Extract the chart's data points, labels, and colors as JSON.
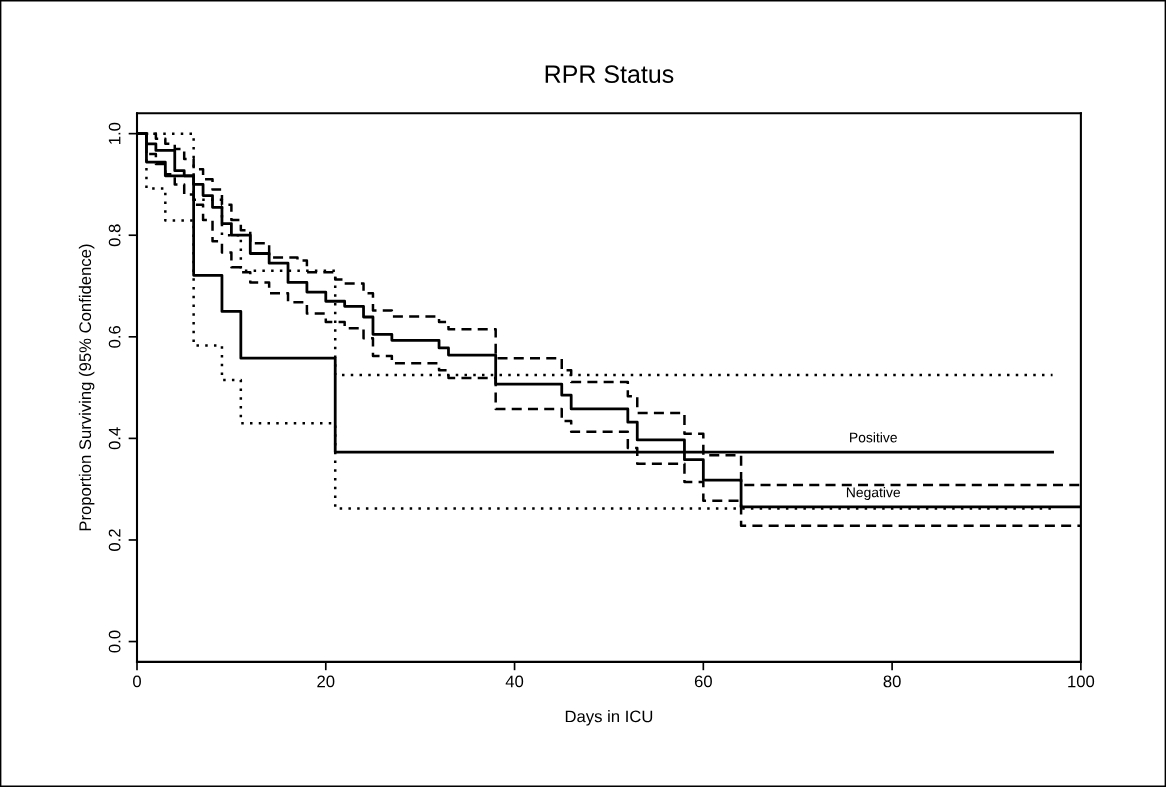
{
  "chart_data": {
    "type": "step",
    "title": "RPR Status",
    "xlabel": "Days in ICU",
    "ylabel": "Proportion Surviving (95% Confidence)",
    "xlim": [
      0,
      100
    ],
    "xticks": [
      0,
      20,
      40,
      60,
      80,
      100
    ],
    "ylim": [
      -0.04,
      1.04
    ],
    "yticks": [
      {
        "value": 0,
        "label": "0.0"
      },
      {
        "value": 0.2,
        "label": "0.2"
      },
      {
        "value": 0.4,
        "label": "0.4"
      },
      {
        "value": 0.6,
        "label": "0.6"
      },
      {
        "value": 0.8,
        "label": "0.8"
      },
      {
        "value": 1,
        "label": "1.0"
      }
    ],
    "grid": false,
    "legend": false,
    "series": [
      {
        "name": "Positive",
        "color": "#000000",
        "line_style": "solid",
        "x": [
          0,
          1,
          3,
          6,
          9,
          11,
          21,
          97
        ],
        "values": [
          1.0,
          0.944,
          0.917,
          0.721,
          0.65,
          0.558,
          0.373,
          0.373
        ]
      },
      {
        "color": "#000000",
        "line_style": "dotted",
        "x": [
          0,
          6,
          9,
          11,
          21,
          97
        ],
        "values": [
          1.0,
          0.87,
          0.8,
          0.73,
          0.525,
          0.525
        ]
      },
      {
        "color": "#000000",
        "line_style": "dotted",
        "x": [
          0,
          1,
          3,
          6,
          9,
          11,
          21,
          97
        ],
        "values": [
          1.0,
          0.892,
          0.829,
          0.583,
          0.515,
          0.43,
          0.262,
          0.262
        ]
      },
      {
        "name": "Negative",
        "color": "#000000",
        "line_style": "solid",
        "x": [
          0,
          1,
          2,
          4,
          5,
          6,
          7,
          8,
          9,
          10,
          12,
          14,
          16,
          18,
          20,
          22,
          24,
          25,
          27,
          32,
          33,
          38,
          45,
          46,
          52,
          53,
          58,
          60,
          64,
          100
        ],
        "values": [
          1.0,
          0.98,
          0.967,
          0.927,
          0.917,
          0.9,
          0.878,
          0.855,
          0.823,
          0.8,
          0.764,
          0.745,
          0.707,
          0.688,
          0.67,
          0.66,
          0.639,
          0.605,
          0.593,
          0.578,
          0.564,
          0.507,
          0.485,
          0.458,
          0.432,
          0.397,
          0.358,
          0.318,
          0.265,
          0.265
        ]
      },
      {
        "color": "#000000",
        "line_style": "dashed",
        "x": [
          0,
          2,
          3,
          4,
          5,
          6,
          7,
          8,
          9,
          10,
          11,
          12,
          14,
          17,
          18,
          21,
          22,
          24,
          25,
          27,
          32,
          33,
          38,
          45,
          46,
          52,
          53,
          58,
          60,
          64,
          100
        ],
        "values": [
          1.0,
          0.99,
          0.98,
          0.97,
          0.95,
          0.93,
          0.91,
          0.89,
          0.86,
          0.83,
          0.81,
          0.784,
          0.756,
          0.75,
          0.727,
          0.713,
          0.705,
          0.686,
          0.652,
          0.64,
          0.629,
          0.615,
          0.558,
          0.534,
          0.511,
          0.483,
          0.45,
          0.409,
          0.367,
          0.308,
          0.308
        ]
      },
      {
        "color": "#000000",
        "line_style": "dashed",
        "x": [
          0,
          1,
          2,
          3,
          4,
          5,
          6,
          7,
          8,
          9,
          10,
          11,
          12,
          14,
          16,
          18,
          20,
          22,
          24,
          25,
          27,
          32,
          33,
          38,
          45,
          46,
          52,
          53,
          58,
          60,
          64,
          100
        ],
        "values": [
          1.0,
          0.96,
          0.94,
          0.92,
          0.9,
          0.88,
          0.86,
          0.83,
          0.788,
          0.766,
          0.737,
          0.727,
          0.707,
          0.686,
          0.668,
          0.646,
          0.629,
          0.617,
          0.597,
          0.562,
          0.548,
          0.534,
          0.519,
          0.458,
          0.434,
          0.413,
          0.381,
          0.35,
          0.314,
          0.277,
          0.228,
          0.228
        ]
      }
    ]
  }
}
